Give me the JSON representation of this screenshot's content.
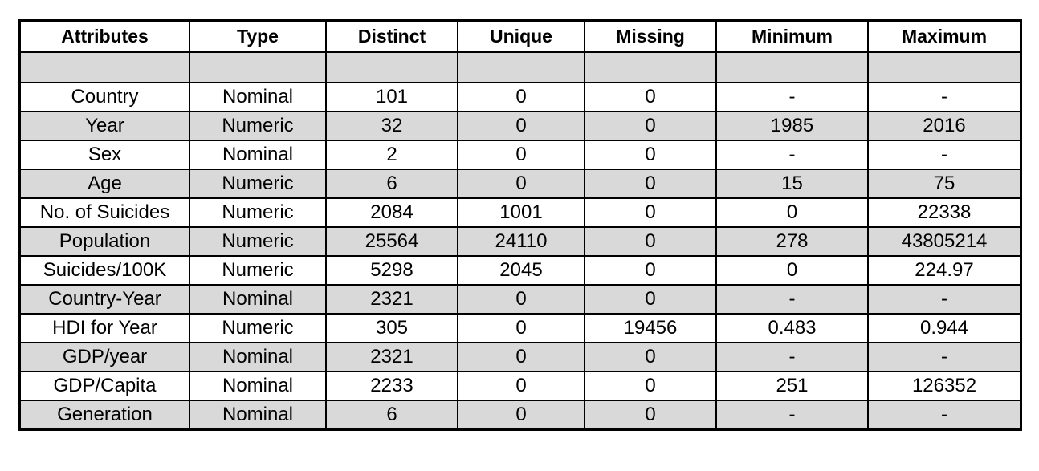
{
  "table": {
    "headers": [
      "Attributes",
      "Type",
      "Distinct",
      "Unique",
      "Missing",
      "Minimum",
      "Maximum"
    ],
    "rows": [
      [
        "Country",
        "Nominal",
        "101",
        "0",
        "0",
        "-",
        "-"
      ],
      [
        "Year",
        "Numeric",
        "32",
        "0",
        "0",
        "1985",
        "2016"
      ],
      [
        "Sex",
        "Nominal",
        "2",
        "0",
        "0",
        "-",
        "-"
      ],
      [
        "Age",
        "Numeric",
        "6",
        "0",
        "0",
        "15",
        "75"
      ],
      [
        "No. of Suicides",
        "Numeric",
        "2084",
        "1001",
        "0",
        "0",
        "22338"
      ],
      [
        "Population",
        "Numeric",
        "25564",
        "24110",
        "0",
        "278",
        "43805214"
      ],
      [
        "Suicides/100K",
        "Numeric",
        "5298",
        "2045",
        "0",
        "0",
        "224.97"
      ],
      [
        "Country-Year",
        "Nominal",
        "2321",
        "0",
        "0",
        "-",
        "-"
      ],
      [
        "HDI for Year",
        "Numeric",
        "305",
        "0",
        "19456",
        "0.483",
        "0.944"
      ],
      [
        "GDP/year",
        "Nominal",
        "2321",
        "0",
        "0",
        "-",
        "-"
      ],
      [
        "GDP/Capita",
        "Nominal",
        "2233",
        "0",
        "0",
        "251",
        "126352"
      ],
      [
        "Generation",
        "Nominal",
        "6",
        "0",
        "0",
        "-",
        "-"
      ]
    ]
  },
  "colors": {
    "row_shade": "#d9d9d9",
    "border": "#000000",
    "background": "#ffffff"
  }
}
